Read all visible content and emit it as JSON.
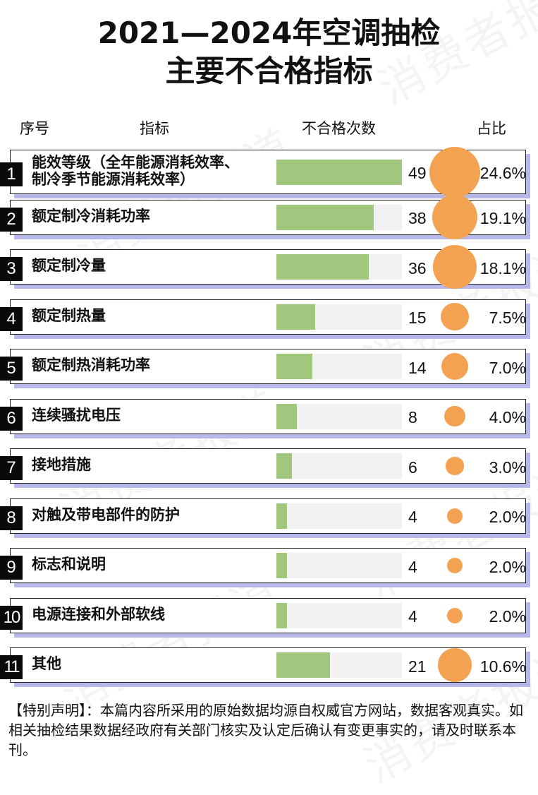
{
  "title": {
    "line1": "2021—2024年空调抽检",
    "line2": "主要不合格指标"
  },
  "columns": {
    "index": "序号",
    "indicator": "指标",
    "count": "不合格次数",
    "share": "占比"
  },
  "rows": [
    {
      "no": "1",
      "label_l1": "能效等级（全年能源消耗效率、",
      "label_l2": "制冷季节能源消耗效率）",
      "count": "49",
      "pct": "24.6%"
    },
    {
      "no": "2",
      "label_l1": "额定制冷消耗功率",
      "label_l2": "",
      "count": "38",
      "pct": "19.1%"
    },
    {
      "no": "3",
      "label_l1": "额定制冷量",
      "label_l2": "",
      "count": "36",
      "pct": "18.1%"
    },
    {
      "no": "4",
      "label_l1": "额定制热量",
      "label_l2": "",
      "count": "15",
      "pct": "7.5%"
    },
    {
      "no": "5",
      "label_l1": "额定制热消耗功率",
      "label_l2": "",
      "count": "14",
      "pct": "7.0%"
    },
    {
      "no": "6",
      "label_l1": "连续骚扰电压",
      "label_l2": "",
      "count": "8",
      "pct": "4.0%"
    },
    {
      "no": "7",
      "label_l1": "接地措施",
      "label_l2": "",
      "count": "6",
      "pct": "3.0%"
    },
    {
      "no": "8",
      "label_l1": "对触及带电部件的防护",
      "label_l2": "",
      "count": "4",
      "pct": "2.0%"
    },
    {
      "no": "9",
      "label_l1": "标志和说明",
      "label_l2": "",
      "count": "4",
      "pct": "2.0%"
    },
    {
      "no": "10",
      "label_l1": "电源连接和外部软线",
      "label_l2": "",
      "count": "4",
      "pct": "2.0%"
    },
    {
      "no": "11",
      "label_l1": "其他",
      "label_l2": "",
      "count": "21",
      "pct": "10.6%"
    }
  ],
  "note": "【特别声明】：本篇内容所采用的原始数据均源自权威官方网站，数据客观真实。如相关抽检结果数据经政府有关部门核实及认定后确认有变更事实的，请及时联系本刊。",
  "watermark": "消费者报道",
  "colors": {
    "bar": "#a1c77f",
    "track": "#f2f2f2",
    "dot": "#f3a251",
    "shadow": "#b7b7ea",
    "badge": "#0a0a0a"
  },
  "chart_data": {
    "type": "bar",
    "title": "2021—2024年空调抽检主要不合格指标",
    "xlabel": "指标",
    "ylabel": "不合格次数",
    "categories": [
      "能效等级（全年能源消耗效率、制冷季节能源消耗效率）",
      "额定制冷消耗功率",
      "额定制冷量",
      "额定制热量",
      "额定制热消耗功率",
      "连续骚扰电压",
      "接地措施",
      "对触及带电部件的防护",
      "标志和说明",
      "电源连接和外部软线",
      "其他"
    ],
    "series": [
      {
        "name": "不合格次数",
        "values": [
          49,
          38,
          36,
          15,
          14,
          8,
          6,
          4,
          4,
          4,
          21
        ]
      },
      {
        "name": "占比(%)",
        "values": [
          24.6,
          19.1,
          18.1,
          7.5,
          7.0,
          4.0,
          3.0,
          2.0,
          2.0,
          2.0,
          10.6
        ]
      }
    ],
    "orientation": "horizontal",
    "grid": false,
    "legend": "none",
    "ylim": [
      0,
      49
    ]
  }
}
